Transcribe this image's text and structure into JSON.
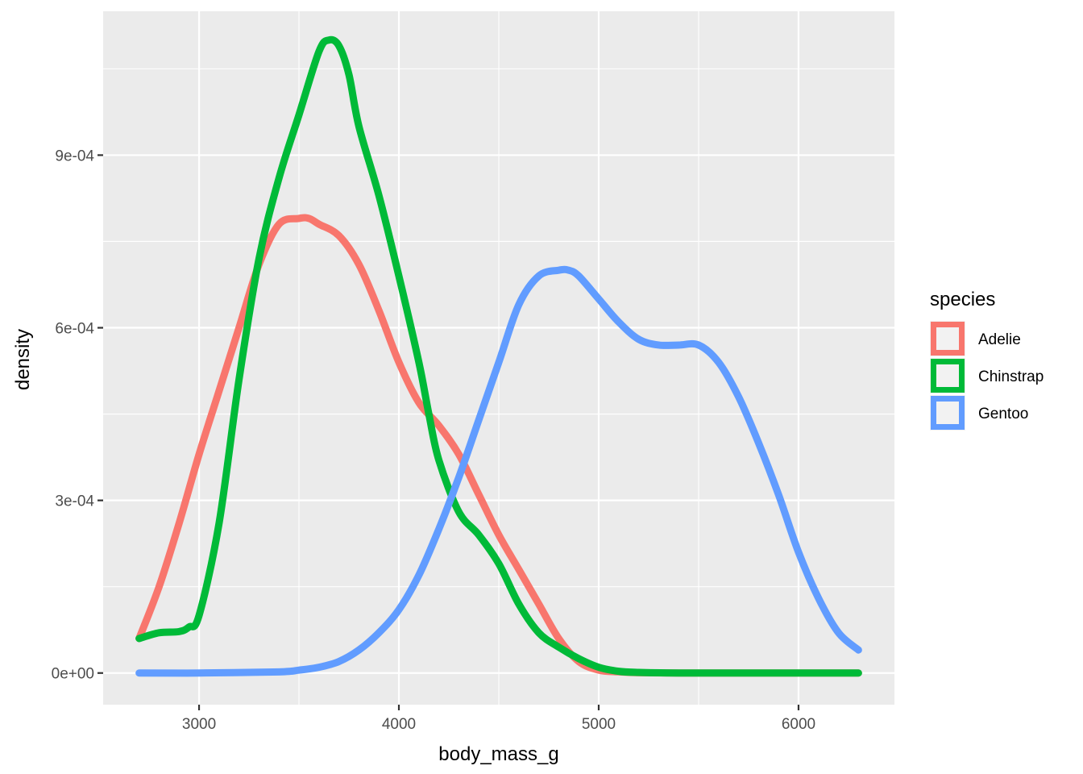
{
  "chart_data": {
    "type": "line",
    "title": "",
    "xlabel": "body_mass_g",
    "ylabel": "density",
    "xlim": [
      2520,
      6480
    ],
    "ylim": [
      -5.5e-05,
      0.00115
    ],
    "x_ticks": [
      3000,
      4000,
      5000,
      6000
    ],
    "x_tick_labels": [
      "3000",
      "4000",
      "5000",
      "6000"
    ],
    "y_ticks": [
      0,
      0.0003,
      0.0006,
      0.0009
    ],
    "y_tick_labels": [
      "0e+00",
      "3e-04",
      "6e-04",
      "9e-04"
    ],
    "grid": true,
    "legend": {
      "title": "species",
      "placement": "right"
    },
    "series": [
      {
        "name": "Adelie",
        "color": "#F8766D",
        "x": [
          2700,
          2800,
          2900,
          3000,
          3100,
          3200,
          3300,
          3400,
          3500,
          3550,
          3600,
          3700,
          3800,
          3900,
          4000,
          4100,
          4200,
          4300,
          4400,
          4500,
          4600,
          4700,
          4800,
          4900,
          5000,
          5100,
          5200,
          5400,
          5600,
          5800,
          6000,
          6200,
          6300
        ],
        "y": [
          6e-05,
          0.00015,
          0.00026,
          0.00038,
          0.00049,
          0.0006,
          0.00071,
          0.00078,
          0.00079,
          0.00079,
          0.00078,
          0.00076,
          0.00071,
          0.00063,
          0.00054,
          0.00047,
          0.00043,
          0.00038,
          0.00031,
          0.00024,
          0.00018,
          0.00012,
          6e-05,
          2e-05,
          5e-06,
          2e-06,
          5e-07,
          0,
          0,
          0,
          0,
          0,
          0
        ]
      },
      {
        "name": "Chinstrap",
        "color": "#00BA38",
        "x": [
          2700,
          2800,
          2900,
          2950,
          3000,
          3100,
          3200,
          3300,
          3400,
          3500,
          3600,
          3650,
          3700,
          3750,
          3800,
          3900,
          4000,
          4100,
          4150,
          4200,
          4300,
          4400,
          4500,
          4600,
          4700,
          4800,
          4900,
          5000,
          5100,
          5200,
          5400,
          5600,
          5800,
          6000,
          6200,
          6300
        ],
        "y": [
          6e-05,
          7e-05,
          7.2e-05,
          8e-05,
          0.0001,
          0.00026,
          0.00051,
          0.00072,
          0.00086,
          0.00097,
          0.00108,
          0.0011,
          0.00109,
          0.00104,
          0.00095,
          0.00083,
          0.00069,
          0.00054,
          0.00045,
          0.00037,
          0.00028,
          0.00024,
          0.00019,
          0.00012,
          7e-05,
          4.5e-05,
          2.5e-05,
          1e-05,
          3e-06,
          1e-06,
          0,
          0,
          0,
          0,
          0,
          0
        ]
      },
      {
        "name": "Gentoo",
        "color": "#619CFF",
        "x": [
          2700,
          3000,
          3400,
          3500,
          3600,
          3700,
          3800,
          3900,
          4000,
          4100,
          4200,
          4300,
          4400,
          4500,
          4600,
          4700,
          4800,
          4850,
          4900,
          5000,
          5100,
          5200,
          5300,
          5400,
          5500,
          5600,
          5700,
          5800,
          5900,
          6000,
          6100,
          6200,
          6300
        ],
        "y": [
          0,
          0,
          2e-06,
          5e-06,
          1e-05,
          2e-05,
          4e-05,
          7e-05,
          0.00011,
          0.00017,
          0.00025,
          0.00034,
          0.00044,
          0.00054,
          0.00064,
          0.00069,
          0.0007,
          0.0007,
          0.00069,
          0.00065,
          0.00061,
          0.00058,
          0.00057,
          0.00057,
          0.00057,
          0.00054,
          0.00048,
          0.0004,
          0.00031,
          0.00021,
          0.00013,
          7e-05,
          4e-05
        ]
      }
    ]
  }
}
